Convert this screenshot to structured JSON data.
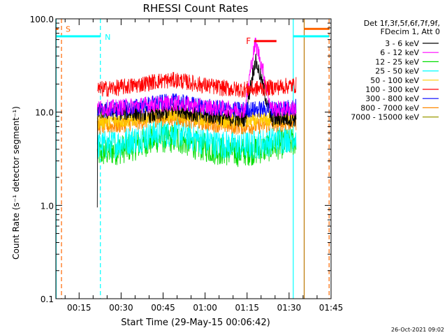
{
  "chart_data": {
    "type": "line",
    "title": "RHESSI Count Rates",
    "xlabel": "Start Time (29-May-15 00:06:42)",
    "ylabel": "Count Rate (s⁻¹ detector segment⁻¹)",
    "y_scale": "log",
    "ylim": [
      0.1,
      100
    ],
    "xlim_minutes": [
      6.7,
      105
    ],
    "x_ticks": [
      {
        "min": 15,
        "label": "00:15"
      },
      {
        "min": 30,
        "label": "00:30"
      },
      {
        "min": 45,
        "label": "00:45"
      },
      {
        "min": 60,
        "label": "01:00"
      },
      {
        "min": 75,
        "label": "01:15"
      },
      {
        "min": 90,
        "label": "01:30"
      },
      {
        "min": 105,
        "label": "01:45"
      }
    ],
    "y_ticks": [
      {
        "v": 0.1,
        "label": "0.1"
      },
      {
        "v": 1,
        "label": "1.0"
      },
      {
        "v": 10,
        "label": "10.0"
      },
      {
        "v": 100,
        "label": "100.0"
      }
    ],
    "legend_title": [
      "Det 1f,3f,5f,6f,7f,9f,",
      "FDecim 1, Att 0"
    ],
    "legend_position": "right",
    "data_window_minutes": [
      21.5,
      92.5
    ],
    "series": [
      {
        "name": "3 - 6 keV",
        "color": "#000000",
        "level": [
          10.2,
          10.0,
          9.8,
          9.2,
          11.0,
          9.3,
          9.0,
          8.5,
          8.3,
          8.5,
          8.6
        ]
      },
      {
        "name": "6 - 12 keV",
        "color": "#ff00ff",
        "level": [
          11.0,
          11.2,
          11.8,
          12.2,
          12.5,
          11.6,
          11.1,
          10.6,
          10.6,
          10.8,
          11.0
        ]
      },
      {
        "name": "12 - 25 keV",
        "color": "#00dd00",
        "level": [
          3.6,
          3.9,
          4.4,
          5.2,
          5.2,
          4.4,
          3.9,
          3.7,
          3.9,
          4.4,
          4.9
        ]
      },
      {
        "name": "25 - 50 keV",
        "color": "#00ffff",
        "level": [
          4.4,
          4.6,
          5.2,
          5.9,
          6.1,
          5.2,
          4.6,
          4.3,
          4.5,
          5.0,
          5.5
        ]
      },
      {
        "name": "50 - 100 keV",
        "color": "#ffcc00",
        "level": [
          8.0,
          8.1,
          8.6,
          9.4,
          9.6,
          8.8,
          8.3,
          8.0,
          8.1,
          8.4,
          8.8
        ]
      },
      {
        "name": "100 - 300 keV",
        "color": "#ff0000",
        "level": [
          17.5,
          18.2,
          19.5,
          21.5,
          22.0,
          20.0,
          18.5,
          17.5,
          17.8,
          18.5,
          19.5
        ]
      },
      {
        "name": "300 - 800 keV",
        "color": "#0000ff",
        "level": [
          10.5,
          10.8,
          11.5,
          12.5,
          13.0,
          11.8,
          11.0,
          10.6,
          10.7,
          11.0,
          11.4
        ]
      },
      {
        "name": "800 - 7000 keV",
        "color": "#ff8800",
        "level": [
          7.0,
          7.2,
          7.8,
          8.5,
          8.7,
          7.9,
          7.4,
          7.0,
          7.1,
          7.4,
          7.8
        ]
      },
      {
        "name": "7000 - 15000 keV",
        "color": "#999900",
        "level": []
      }
    ],
    "flare": {
      "start_min": 74,
      "peak_min": 78,
      "end_min": 84,
      "peak_value": 55,
      "label": "F",
      "color": "#ff0000"
    },
    "annotations": [
      {
        "label": "S",
        "color": "#ff6600"
      },
      {
        "label": "N",
        "color": "#00ffff"
      }
    ],
    "vertical_lines_minutes": [
      {
        "min": 6.8,
        "color": "#00ffff",
        "style": "solid"
      },
      {
        "min": 8.7,
        "color": "#ff6600",
        "style": "dashed"
      },
      {
        "min": 22.6,
        "color": "#00ffff",
        "style": "dashed"
      },
      {
        "min": 91.5,
        "color": "#00ffff",
        "style": "solid"
      },
      {
        "min": 95.4,
        "color": "#bb7700",
        "style": "solid"
      },
      {
        "min": 104.3,
        "color": "#ff6600",
        "style": "dashed"
      }
    ]
  },
  "footer": {
    "timestamp": "26-Oct-2021 09:02"
  }
}
